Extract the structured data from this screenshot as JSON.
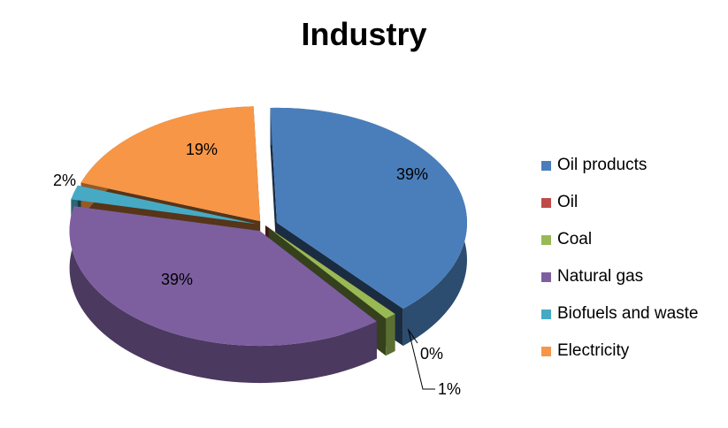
{
  "chart_data": {
    "type": "pie",
    "title": "Industry",
    "categories": [
      "Oil products",
      "Oil",
      "Coal",
      "Natural gas",
      "Biofuels and waste",
      "Electricity"
    ],
    "values": [
      39,
      0,
      1,
      39,
      2,
      19
    ],
    "labels": [
      "39%",
      "0%",
      "1%",
      "39%",
      "2%",
      "19%"
    ],
    "colors": [
      "#4A7EBB",
      "#BE4B48",
      "#98B954",
      "#7D5FA0",
      "#46AAC5",
      "#F79646"
    ],
    "legend_position": "right",
    "style": "3d-exploded"
  }
}
